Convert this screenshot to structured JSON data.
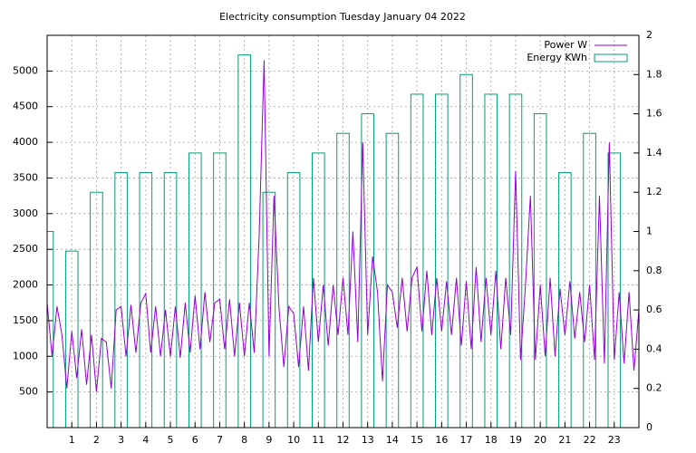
{
  "chart_data": {
    "type": "line",
    "title": "Electricity consumption Tuesday January 04 2022",
    "xlim": [
      0,
      24
    ],
    "xticks": [
      1,
      2,
      3,
      4,
      5,
      6,
      7,
      8,
      9,
      10,
      11,
      12,
      13,
      14,
      15,
      16,
      17,
      18,
      19,
      20,
      21,
      22,
      23
    ],
    "ylim": [
      0,
      5500
    ],
    "yticks": [
      500,
      1000,
      1500,
      2000,
      2500,
      3000,
      3500,
      4000,
      4500,
      5000
    ],
    "y2lim": [
      0,
      2
    ],
    "y2ticks": [
      0,
      0.2,
      0.4,
      0.6,
      0.8,
      1,
      1.2,
      1.4,
      1.6,
      1.8,
      2
    ],
    "grid": true,
    "legend": "top-right",
    "series": [
      {
        "name": "Power W",
        "type": "line",
        "color": "#9400d3",
        "x": [
          0,
          0.2,
          0.4,
          0.6,
          0.8,
          1,
          1.2,
          1.4,
          1.6,
          1.8,
          2,
          2.2,
          2.4,
          2.6,
          2.8,
          3,
          3.2,
          3.4,
          3.6,
          3.8,
          4,
          4.2,
          4.4,
          4.6,
          4.8,
          5,
          5.2,
          5.4,
          5.6,
          5.8,
          6,
          6.2,
          6.4,
          6.6,
          6.8,
          7,
          7.2,
          7.4,
          7.6,
          7.8,
          8,
          8.2,
          8.4,
          8.6,
          8.8,
          9,
          9.2,
          9.4,
          9.6,
          9.8,
          10,
          10.2,
          10.4,
          10.6,
          10.8,
          11,
          11.2,
          11.4,
          11.6,
          11.8,
          12,
          12.2,
          12.4,
          12.6,
          12.8,
          13,
          13.2,
          13.4,
          13.6,
          13.8,
          14,
          14.2,
          14.4,
          14.6,
          14.8,
          15,
          15.2,
          15.4,
          15.6,
          15.8,
          16,
          16.2,
          16.4,
          16.6,
          16.8,
          17,
          17.2,
          17.4,
          17.6,
          17.8,
          18,
          18.2,
          18.4,
          18.6,
          18.8,
          19,
          19.2,
          19.4,
          19.6,
          19.8,
          20,
          20.2,
          20.4,
          20.6,
          20.8,
          21,
          21.2,
          21.4,
          21.6,
          21.8,
          22,
          22.2,
          22.4,
          22.6,
          22.8,
          23,
          23.2,
          23.4,
          23.6,
          23.8,
          24
        ],
        "values": [
          1750,
          1000,
          1700,
          1300,
          550,
          1350,
          700,
          1380,
          600,
          1300,
          500,
          1250,
          1200,
          550,
          1650,
          1700,
          1000,
          1720,
          1050,
          1750,
          1880,
          1050,
          1700,
          1000,
          1650,
          1000,
          1700,
          980,
          1750,
          1050,
          1850,
          1100,
          1900,
          1200,
          1750,
          1800,
          1100,
          1800,
          1000,
          1750,
          1000,
          1750,
          1050,
          2700,
          5150,
          1000,
          3250,
          1700,
          850,
          1700,
          1600,
          850,
          1700,
          800,
          2100,
          1200,
          2000,
          1150,
          2000,
          1300,
          2100,
          1300,
          2750,
          1200,
          4000,
          1300,
          2400,
          1900,
          650,
          2000,
          1900,
          1400,
          2100,
          1350,
          2100,
          2250,
          1350,
          2200,
          1300,
          2100,
          1350,
          2050,
          1300,
          2100,
          1150,
          2050,
          1100,
          2250,
          1200,
          2100,
          1300,
          2200,
          1100,
          2100,
          1300,
          3600,
          950,
          2000,
          3250,
          950,
          2000,
          1000,
          2100,
          1000,
          1950,
          1300,
          2050,
          1250,
          1900,
          1200,
          2000,
          950,
          3250,
          900,
          4000,
          950,
          1900,
          900,
          1900,
          800,
          1650
        ]
      },
      {
        "name": "Energy KWh",
        "type": "box",
        "axis": "y2",
        "color": "#009e73",
        "x": [
          0,
          1,
          2,
          3,
          4,
          5,
          6,
          7,
          8,
          9,
          10,
          11,
          12,
          13,
          14,
          15,
          16,
          17,
          18,
          19,
          20,
          21,
          22,
          23
        ],
        "values": [
          1.0,
          0.9,
          1.2,
          1.3,
          1.3,
          1.3,
          1.4,
          1.4,
          1.9,
          1.2,
          1.3,
          1.4,
          1.5,
          1.6,
          1.5,
          1.7,
          1.7,
          1.8,
          1.7,
          1.7,
          1.6,
          1.3,
          1.5,
          1.4
        ]
      }
    ]
  }
}
